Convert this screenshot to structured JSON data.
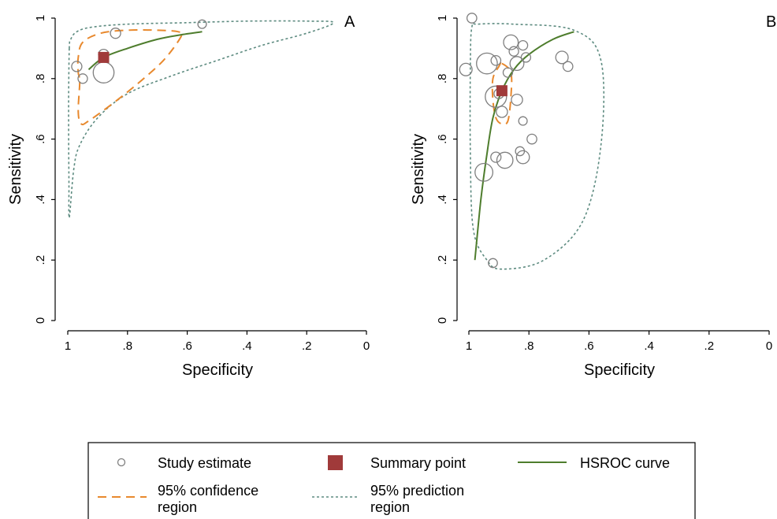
{
  "chart_data": [
    {
      "type": "scatter",
      "panel_label": "A",
      "xlabel": "Specificity",
      "ylabel": "Sensitivity",
      "xlim": [
        1,
        0
      ],
      "ylim": [
        0,
        1
      ],
      "x_ticks": [
        "1",
        ".8",
        ".6",
        ".4",
        ".2",
        "0"
      ],
      "y_ticks": [
        "0",
        ".2",
        ".4",
        ".6",
        ".8",
        "1"
      ],
      "study_estimates": [
        {
          "specificity": 0.97,
          "sensitivity": 0.84,
          "weight": 0.09
        },
        {
          "specificity": 0.95,
          "sensitivity": 0.8,
          "weight": 0.07
        },
        {
          "specificity": 0.88,
          "sensitivity": 0.88,
          "weight": 0.09
        },
        {
          "specificity": 0.88,
          "sensitivity": 0.82,
          "weight": 0.33
        },
        {
          "specificity": 0.84,
          "sensitivity": 0.95,
          "weight": 0.09
        },
        {
          "specificity": 0.55,
          "sensitivity": 0.98,
          "weight": 0.05
        }
      ],
      "summary_point": {
        "specificity": 0.88,
        "sensitivity": 0.87
      },
      "hsroc_curve": [
        [
          0.93,
          0.83
        ],
        [
          0.88,
          0.87
        ],
        [
          0.8,
          0.9
        ],
        [
          0.7,
          0.93
        ],
        [
          0.62,
          0.945
        ],
        [
          0.55,
          0.955
        ]
      ],
      "confidence_region": [
        [
          0.96,
          0.79
        ],
        [
          0.965,
          0.69
        ],
        [
          0.955,
          0.65
        ],
        [
          0.93,
          0.66
        ],
        [
          0.86,
          0.71
        ],
        [
          0.77,
          0.78
        ],
        [
          0.68,
          0.86
        ],
        [
          0.62,
          0.94
        ],
        [
          0.63,
          0.955
        ],
        [
          0.7,
          0.96
        ],
        [
          0.8,
          0.96
        ],
        [
          0.89,
          0.95
        ],
        [
          0.95,
          0.92
        ],
        [
          0.965,
          0.87
        ],
        [
          0.965,
          0.82
        ]
      ],
      "prediction_region": [
        [
          0.995,
          0.9
        ],
        [
          0.997,
          0.75
        ],
        [
          0.997,
          0.6
        ],
        [
          0.996,
          0.45
        ],
        [
          0.995,
          0.34
        ],
        [
          0.98,
          0.5
        ],
        [
          0.96,
          0.58
        ],
        [
          0.9,
          0.67
        ],
        [
          0.8,
          0.75
        ],
        [
          0.65,
          0.81
        ],
        [
          0.5,
          0.86
        ],
        [
          0.35,
          0.91
        ],
        [
          0.2,
          0.95
        ],
        [
          0.11,
          0.985
        ],
        [
          0.2,
          0.99
        ],
        [
          0.4,
          0.99
        ],
        [
          0.6,
          0.985
        ],
        [
          0.8,
          0.98
        ],
        [
          0.92,
          0.97
        ],
        [
          0.97,
          0.955
        ],
        [
          0.99,
          0.93
        ]
      ]
    },
    {
      "type": "scatter",
      "panel_label": "B",
      "xlabel": "Specificity",
      "ylabel": "Sensitivity",
      "xlim": [
        1,
        0
      ],
      "ylim": [
        0,
        1
      ],
      "x_ticks": [
        "1",
        ".8",
        ".6",
        ".4",
        ".2",
        "0"
      ],
      "y_ticks": [
        "0",
        ".2",
        ".4",
        ".6",
        ".8",
        "1"
      ],
      "study_estimates": [
        {
          "specificity": 0.99,
          "sensitivity": 1.0,
          "weight": 0.08
        },
        {
          "specificity": 1.01,
          "sensitivity": 0.83,
          "weight": 0.14
        },
        {
          "specificity": 0.94,
          "sensitivity": 0.85,
          "weight": 0.33
        },
        {
          "specificity": 0.91,
          "sensitivity": 0.86,
          "weight": 0.08
        },
        {
          "specificity": 0.86,
          "sensitivity": 0.92,
          "weight": 0.19
        },
        {
          "specificity": 0.85,
          "sensitivity": 0.89,
          "weight": 0.07
        },
        {
          "specificity": 0.82,
          "sensitivity": 0.91,
          "weight": 0.07
        },
        {
          "specificity": 0.84,
          "sensitivity": 0.85,
          "weight": 0.17
        },
        {
          "specificity": 0.81,
          "sensitivity": 0.87,
          "weight": 0.07
        },
        {
          "specificity": 0.87,
          "sensitivity": 0.82,
          "weight": 0.07
        },
        {
          "specificity": 0.9,
          "sensitivity": 0.75,
          "weight": 0.08
        },
        {
          "specificity": 0.91,
          "sensitivity": 0.74,
          "weight": 0.34
        },
        {
          "specificity": 0.84,
          "sensitivity": 0.73,
          "weight": 0.11
        },
        {
          "specificity": 0.89,
          "sensitivity": 0.69,
          "weight": 0.11
        },
        {
          "specificity": 0.82,
          "sensitivity": 0.66,
          "weight": 0.05
        },
        {
          "specificity": 0.69,
          "sensitivity": 0.87,
          "weight": 0.14
        },
        {
          "specificity": 0.67,
          "sensitivity": 0.84,
          "weight": 0.08
        },
        {
          "specificity": 0.79,
          "sensitivity": 0.6,
          "weight": 0.08
        },
        {
          "specificity": 0.83,
          "sensitivity": 0.56,
          "weight": 0.06
        },
        {
          "specificity": 0.91,
          "sensitivity": 0.54,
          "weight": 0.09
        },
        {
          "specificity": 0.88,
          "sensitivity": 0.53,
          "weight": 0.22
        },
        {
          "specificity": 0.82,
          "sensitivity": 0.54,
          "weight": 0.15
        },
        {
          "specificity": 0.95,
          "sensitivity": 0.49,
          "weight": 0.26
        },
        {
          "specificity": 0.92,
          "sensitivity": 0.19,
          "weight": 0.06
        }
      ],
      "summary_point": {
        "specificity": 0.89,
        "sensitivity": 0.76
      },
      "hsroc_curve": [
        [
          0.98,
          0.2
        ],
        [
          0.96,
          0.4
        ],
        [
          0.94,
          0.55
        ],
        [
          0.92,
          0.67
        ],
        [
          0.89,
          0.76
        ],
        [
          0.85,
          0.83
        ],
        [
          0.8,
          0.88
        ],
        [
          0.72,
          0.93
        ],
        [
          0.65,
          0.955
        ]
      ],
      "confidence_region": [
        [
          0.89,
          0.85
        ],
        [
          0.86,
          0.82
        ],
        [
          0.86,
          0.74
        ],
        [
          0.87,
          0.66
        ],
        [
          0.89,
          0.65
        ],
        [
          0.91,
          0.67
        ],
        [
          0.92,
          0.73
        ],
        [
          0.92,
          0.8
        ],
        [
          0.9,
          0.84
        ]
      ],
      "prediction_region": [
        [
          0.99,
          0.97
        ],
        [
          0.97,
          0.98
        ],
        [
          0.85,
          0.98
        ],
        [
          0.65,
          0.96
        ],
        [
          0.56,
          0.86
        ],
        [
          0.56,
          0.58
        ],
        [
          0.62,
          0.33
        ],
        [
          0.75,
          0.2
        ],
        [
          0.89,
          0.17
        ],
        [
          0.94,
          0.2
        ],
        [
          0.985,
          0.3
        ],
        [
          0.995,
          0.55
        ],
        [
          0.995,
          0.85
        ]
      ]
    }
  ],
  "legend": {
    "study_estimate": "Study estimate",
    "summary_point": "Summary point",
    "hsroc_curve": "HSROC curve",
    "confidence_line1": "95% confidence",
    "confidence_line2": "region",
    "prediction_line1": "95% prediction",
    "prediction_line2": "region"
  },
  "colors": {
    "study_marker": "#7f7f7f",
    "summary_point": "#a03a3a",
    "hsroc_curve": "#4e7d2d",
    "confidence_region": "#e8892e",
    "prediction_region": "#5d8b80",
    "axis": "#000000"
  }
}
